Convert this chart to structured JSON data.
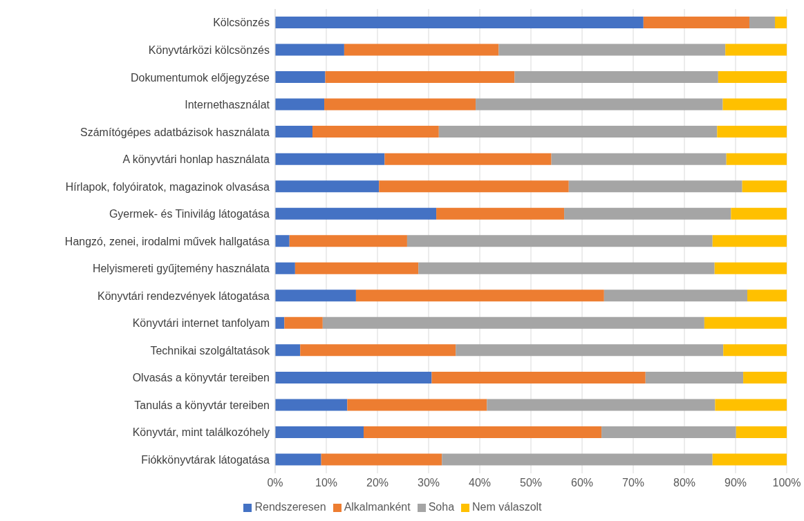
{
  "chart_data": {
    "type": "bar",
    "orientation": "horizontal",
    "stacked": true,
    "grid": "x",
    "legend": "bottom",
    "categories": [
      "Kölcsönzés",
      "Könyvtárközi kölcsönzés",
      "Dokumentumok előjegyzése",
      "Internethasználat",
      "Számítógépes adatbázisok használata",
      "A könyvtári honlap használata",
      "Hírlapok, folyóiratok, magazinok olvasása",
      "Gyermek- és Tinivilág látogatása",
      "Hangzó, zenei, irodalmi művek hallgatása",
      "Helyismereti gyűjtemény használata",
      "Könyvtári rendezvények látogatása",
      "Könyvtári internet tanfolyam",
      "Technikai szolgáltatások",
      "Olvasás a könyvtár tereiben",
      "Tanulás a könyvtár tereiben",
      "Könyvtár, mint találkozóhely",
      "Fiókkönyvtárak látogatása"
    ],
    "series": [
      {
        "name": "Rendszeresen",
        "color": "#4472c4",
        "values": [
          72.0,
          13.5,
          9.8,
          9.6,
          7.3,
          21.4,
          20.3,
          31.5,
          2.8,
          3.9,
          15.8,
          1.8,
          4.9,
          30.6,
          14.1,
          17.3,
          9.0
        ]
      },
      {
        "name": "Alkalmanként",
        "color": "#ed7d31",
        "values": [
          20.7,
          30.2,
          37.0,
          29.6,
          24.7,
          32.6,
          37.1,
          25.0,
          23.0,
          24.1,
          48.5,
          7.5,
          30.4,
          41.8,
          27.3,
          46.5,
          23.6
        ]
      },
      {
        "name": "Soha",
        "color": "#a5a5a5",
        "values": [
          5.0,
          44.3,
          39.8,
          48.3,
          54.4,
          34.2,
          33.9,
          32.6,
          59.7,
          57.9,
          28.0,
          74.6,
          52.3,
          19.1,
          44.6,
          26.3,
          52.9
        ]
      },
      {
        "name": "Nem válaszolt",
        "color": "#ffc000",
        "values": [
          2.3,
          12.0,
          13.4,
          12.5,
          13.6,
          11.8,
          8.7,
          10.9,
          14.5,
          14.1,
          7.7,
          16.1,
          12.4,
          8.5,
          14.0,
          9.9,
          14.5
        ]
      }
    ],
    "xlim": [
      0,
      100
    ],
    "xticks": [
      {
        "value": 0,
        "label": "0%"
      },
      {
        "value": 10,
        "label": "10%"
      },
      {
        "value": 20,
        "label": "20%"
      },
      {
        "value": 30,
        "label": "30%"
      },
      {
        "value": 40,
        "label": "40%"
      },
      {
        "value": 50,
        "label": "50%"
      },
      {
        "value": 60,
        "label": "60%"
      },
      {
        "value": 70,
        "label": "70%"
      },
      {
        "value": 80,
        "label": "80%"
      },
      {
        "value": 90,
        "label": "90%"
      },
      {
        "value": 100,
        "label": "100%"
      }
    ]
  }
}
